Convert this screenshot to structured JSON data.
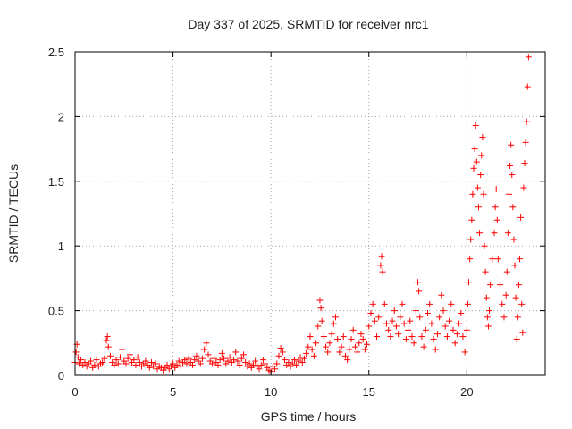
{
  "chart_data": {
    "type": "scatter",
    "title": "Day 337 of 2025, SRMTID for receiver nrc1",
    "xlabel": "GPS time / hours",
    "ylabel": "SRMTID / TECUs",
    "xlim": [
      0,
      24
    ],
    "ylim": [
      0,
      2.5
    ],
    "xticks": [
      0,
      5,
      10,
      15,
      20
    ],
    "xtick_labels": [
      "0",
      "5",
      "10",
      "15",
      "20"
    ],
    "yticks": [
      0,
      0.5,
      1,
      1.5,
      2,
      2.5
    ],
    "ytick_labels": [
      "0",
      "0.5",
      "1",
      "1.5",
      "2",
      "2.5"
    ],
    "grid": true,
    "marker": "plus",
    "color": "#ff0000",
    "series": [
      {
        "name": "SRMTID",
        "points": [
          [
            0.0,
            0.1
          ],
          [
            0.05,
            0.18
          ],
          [
            0.1,
            0.24
          ],
          [
            0.15,
            0.14
          ],
          [
            0.2,
            0.09
          ],
          [
            0.3,
            0.12
          ],
          [
            0.4,
            0.08
          ],
          [
            0.5,
            0.1
          ],
          [
            0.6,
            0.07
          ],
          [
            0.7,
            0.09
          ],
          [
            0.8,
            0.11
          ],
          [
            0.9,
            0.06
          ],
          [
            1.0,
            0.08
          ],
          [
            1.1,
            0.12
          ],
          [
            1.2,
            0.07
          ],
          [
            1.3,
            0.09
          ],
          [
            1.4,
            0.1
          ],
          [
            1.5,
            0.13
          ],
          [
            1.6,
            0.27
          ],
          [
            1.65,
            0.3
          ],
          [
            1.7,
            0.22
          ],
          [
            1.8,
            0.15
          ],
          [
            1.9,
            0.1
          ],
          [
            2.0,
            0.08
          ],
          [
            2.1,
            0.12
          ],
          [
            2.2,
            0.09
          ],
          [
            2.3,
            0.14
          ],
          [
            2.4,
            0.2
          ],
          [
            2.5,
            0.11
          ],
          [
            2.6,
            0.09
          ],
          [
            2.7,
            0.13
          ],
          [
            2.8,
            0.16
          ],
          [
            2.9,
            0.1
          ],
          [
            3.0,
            0.12
          ],
          [
            3.1,
            0.08
          ],
          [
            3.2,
            0.14
          ],
          [
            3.3,
            0.1
          ],
          [
            3.4,
            0.07
          ],
          [
            3.5,
            0.09
          ],
          [
            3.6,
            0.11
          ],
          [
            3.7,
            0.08
          ],
          [
            3.8,
            0.06
          ],
          [
            3.9,
            0.1
          ],
          [
            4.0,
            0.07
          ],
          [
            4.1,
            0.09
          ],
          [
            4.2,
            0.05
          ],
          [
            4.3,
            0.07
          ],
          [
            4.4,
            0.06
          ],
          [
            4.5,
            0.04
          ],
          [
            4.6,
            0.06
          ],
          [
            4.7,
            0.08
          ],
          [
            4.8,
            0.05
          ],
          [
            4.9,
            0.07
          ],
          [
            5.0,
            0.09
          ],
          [
            5.1,
            0.06
          ],
          [
            5.2,
            0.08
          ],
          [
            5.3,
            0.11
          ],
          [
            5.4,
            0.07
          ],
          [
            5.5,
            0.1
          ],
          [
            5.6,
            0.12
          ],
          [
            5.7,
            0.09
          ],
          [
            5.8,
            0.13
          ],
          [
            5.9,
            0.1
          ],
          [
            6.0,
            0.08
          ],
          [
            6.1,
            0.12
          ],
          [
            6.2,
            0.15
          ],
          [
            6.3,
            0.11
          ],
          [
            6.4,
            0.09
          ],
          [
            6.5,
            0.13
          ],
          [
            6.6,
            0.2
          ],
          [
            6.7,
            0.25
          ],
          [
            6.8,
            0.16
          ],
          [
            6.9,
            0.11
          ],
          [
            7.0,
            0.09
          ],
          [
            7.1,
            0.13
          ],
          [
            7.2,
            0.1
          ],
          [
            7.3,
            0.08
          ],
          [
            7.4,
            0.12
          ],
          [
            7.5,
            0.17
          ],
          [
            7.6,
            0.13
          ],
          [
            7.7,
            0.09
          ],
          [
            7.8,
            0.11
          ],
          [
            7.9,
            0.14
          ],
          [
            8.0,
            0.1
          ],
          [
            8.1,
            0.12
          ],
          [
            8.2,
            0.18
          ],
          [
            8.3,
            0.11
          ],
          [
            8.4,
            0.08
          ],
          [
            8.5,
            0.13
          ],
          [
            8.6,
            0.16
          ],
          [
            8.7,
            0.1
          ],
          [
            8.8,
            0.07
          ],
          [
            8.9,
            0.09
          ],
          [
            9.0,
            0.06
          ],
          [
            9.1,
            0.08
          ],
          [
            9.2,
            0.11
          ],
          [
            9.3,
            0.07
          ],
          [
            9.4,
            0.05
          ],
          [
            9.5,
            0.08
          ],
          [
            9.6,
            0.12
          ],
          [
            9.7,
            0.09
          ],
          [
            9.8,
            0.06
          ],
          [
            9.9,
            0.04
          ],
          [
            10.0,
            0.03
          ],
          [
            10.1,
            0.07
          ],
          [
            10.2,
            0.05
          ],
          [
            10.3,
            0.09
          ],
          [
            10.4,
            0.15
          ],
          [
            10.5,
            0.21
          ],
          [
            10.6,
            0.18
          ],
          [
            10.7,
            0.12
          ],
          [
            10.8,
            0.08
          ],
          [
            10.9,
            0.1
          ],
          [
            11.0,
            0.07
          ],
          [
            11.1,
            0.09
          ],
          [
            11.2,
            0.12
          ],
          [
            11.3,
            0.08
          ],
          [
            11.4,
            0.11
          ],
          [
            11.5,
            0.14
          ],
          [
            11.6,
            0.1
          ],
          [
            11.7,
            0.13
          ],
          [
            11.8,
            0.17
          ],
          [
            11.9,
            0.22
          ],
          [
            12.0,
            0.3
          ],
          [
            12.1,
            0.2
          ],
          [
            12.2,
            0.15
          ],
          [
            12.3,
            0.25
          ],
          [
            12.4,
            0.38
          ],
          [
            12.5,
            0.58
          ],
          [
            12.55,
            0.52
          ],
          [
            12.6,
            0.42
          ],
          [
            12.7,
            0.3
          ],
          [
            12.8,
            0.22
          ],
          [
            12.9,
            0.18
          ],
          [
            13.0,
            0.25
          ],
          [
            13.1,
            0.32
          ],
          [
            13.2,
            0.4
          ],
          [
            13.3,
            0.45
          ],
          [
            13.4,
            0.28
          ],
          [
            13.5,
            0.18
          ],
          [
            13.6,
            0.22
          ],
          [
            13.7,
            0.3
          ],
          [
            13.8,
            0.15
          ],
          [
            13.9,
            0.12
          ],
          [
            14.0,
            0.2
          ],
          [
            14.1,
            0.28
          ],
          [
            14.2,
            0.35
          ],
          [
            14.3,
            0.22
          ],
          [
            14.4,
            0.18
          ],
          [
            14.5,
            0.25
          ],
          [
            14.6,
            0.32
          ],
          [
            14.7,
            0.28
          ],
          [
            14.8,
            0.2
          ],
          [
            14.9,
            0.24
          ],
          [
            15.0,
            0.38
          ],
          [
            15.1,
            0.48
          ],
          [
            15.2,
            0.55
          ],
          [
            15.3,
            0.42
          ],
          [
            15.4,
            0.3
          ],
          [
            15.5,
            0.45
          ],
          [
            15.6,
            0.85
          ],
          [
            15.65,
            0.92
          ],
          [
            15.7,
            0.8
          ],
          [
            15.8,
            0.55
          ],
          [
            15.9,
            0.4
          ],
          [
            16.0,
            0.35
          ],
          [
            16.1,
            0.3
          ],
          [
            16.2,
            0.42
          ],
          [
            16.3,
            0.5
          ],
          [
            16.4,
            0.38
          ],
          [
            16.5,
            0.32
          ],
          [
            16.6,
            0.45
          ],
          [
            16.7,
            0.55
          ],
          [
            16.8,
            0.4
          ],
          [
            16.9,
            0.28
          ],
          [
            17.0,
            0.35
          ],
          [
            17.1,
            0.42
          ],
          [
            17.2,
            0.3
          ],
          [
            17.3,
            0.25
          ],
          [
            17.4,
            0.5
          ],
          [
            17.5,
            0.72
          ],
          [
            17.55,
            0.65
          ],
          [
            17.6,
            0.45
          ],
          [
            17.7,
            0.3
          ],
          [
            17.8,
            0.22
          ],
          [
            17.9,
            0.35
          ],
          [
            18.0,
            0.48
          ],
          [
            18.1,
            0.55
          ],
          [
            18.2,
            0.4
          ],
          [
            18.3,
            0.28
          ],
          [
            18.4,
            0.2
          ],
          [
            18.5,
            0.32
          ],
          [
            18.6,
            0.45
          ],
          [
            18.7,
            0.62
          ],
          [
            18.8,
            0.5
          ],
          [
            18.9,
            0.38
          ],
          [
            19.0,
            0.3
          ],
          [
            19.1,
            0.42
          ],
          [
            19.2,
            0.55
          ],
          [
            19.3,
            0.35
          ],
          [
            19.4,
            0.25
          ],
          [
            19.5,
            0.32
          ],
          [
            19.6,
            0.4
          ],
          [
            19.7,
            0.48
          ],
          [
            19.8,
            0.3
          ],
          [
            19.9,
            0.18
          ],
          [
            20.0,
            0.35
          ],
          [
            20.05,
            0.55
          ],
          [
            20.1,
            0.72
          ],
          [
            20.15,
            0.9
          ],
          [
            20.2,
            1.05
          ],
          [
            20.25,
            1.2
          ],
          [
            20.3,
            1.4
          ],
          [
            20.35,
            1.6
          ],
          [
            20.4,
            1.75
          ],
          [
            20.45,
            1.93
          ],
          [
            20.5,
            1.65
          ],
          [
            20.55,
            1.45
          ],
          [
            20.6,
            1.3
          ],
          [
            20.65,
            1.1
          ],
          [
            20.7,
            1.55
          ],
          [
            20.75,
            1.7
          ],
          [
            20.8,
            1.84
          ],
          [
            20.85,
            1.4
          ],
          [
            20.9,
            1.0
          ],
          [
            20.95,
            0.8
          ],
          [
            21.0,
            0.6
          ],
          [
            21.05,
            0.45
          ],
          [
            21.1,
            0.38
          ],
          [
            21.15,
            0.5
          ],
          [
            21.2,
            0.7
          ],
          [
            21.3,
            0.9
          ],
          [
            21.4,
            1.1
          ],
          [
            21.45,
            1.3
          ],
          [
            21.5,
            1.44
          ],
          [
            21.55,
            1.2
          ],
          [
            21.6,
            0.9
          ],
          [
            21.7,
            0.7
          ],
          [
            21.8,
            0.55
          ],
          [
            21.9,
            0.45
          ],
          [
            22.0,
            0.62
          ],
          [
            22.05,
            0.8
          ],
          [
            22.1,
            1.1
          ],
          [
            22.15,
            1.4
          ],
          [
            22.2,
            1.62
          ],
          [
            22.25,
            1.78
          ],
          [
            22.3,
            1.55
          ],
          [
            22.35,
            1.3
          ],
          [
            22.4,
            1.05
          ],
          [
            22.45,
            0.85
          ],
          [
            22.5,
            0.6
          ],
          [
            22.55,
            0.28
          ],
          [
            22.6,
            0.45
          ],
          [
            22.65,
            0.7
          ],
          [
            22.7,
            0.9
          ],
          [
            22.75,
            1.22
          ],
          [
            22.8,
            0.55
          ],
          [
            22.85,
            0.33
          ],
          [
            22.9,
            1.45
          ],
          [
            22.95,
            1.64
          ],
          [
            23.0,
            1.8
          ],
          [
            23.05,
            1.96
          ],
          [
            23.1,
            2.23
          ],
          [
            23.15,
            2.46
          ]
        ]
      }
    ]
  }
}
